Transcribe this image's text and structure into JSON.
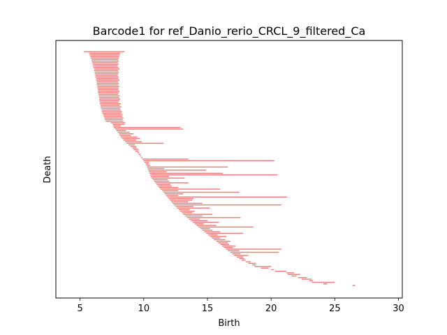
{
  "chart_data": {
    "type": "barcode",
    "title": "Barcode1 for ref_Danio_rerio_CRCL_9_filtered_Ca",
    "xlabel": "Birth",
    "ylabel": "Death",
    "xlim": [
      3.1,
      30.3
    ],
    "xticks": [
      "5",
      "10",
      "15",
      "20",
      "25",
      "30"
    ],
    "y_ticks_shown": false,
    "bar_color": "#f08080",
    "grid": false,
    "legend": "none",
    "intervals": [
      [
        5.3,
        8.5
      ],
      [
        5.7,
        8.15
      ],
      [
        5.75,
        8.12
      ],
      [
        5.8,
        8.08
      ],
      [
        5.85,
        8.05
      ],
      [
        5.9,
        8.0
      ],
      [
        5.9,
        8.05
      ],
      [
        5.95,
        7.98
      ],
      [
        6.0,
        8.02
      ],
      [
        6.0,
        7.95
      ],
      [
        6.05,
        8.0
      ],
      [
        6.1,
        8.1
      ],
      [
        6.1,
        7.98
      ],
      [
        6.15,
        8.05
      ],
      [
        6.15,
        8.0
      ],
      [
        6.2,
        7.95
      ],
      [
        6.2,
        8.05
      ],
      [
        6.25,
        8.0
      ],
      [
        6.25,
        8.1
      ],
      [
        6.3,
        7.98
      ],
      [
        6.3,
        8.05
      ],
      [
        6.3,
        8.0
      ],
      [
        6.35,
        8.08
      ],
      [
        6.35,
        8.02
      ],
      [
        6.4,
        8.0
      ],
      [
        6.4,
        8.1
      ],
      [
        6.4,
        8.05
      ],
      [
        6.45,
        7.98
      ],
      [
        6.45,
        8.12
      ],
      [
        6.5,
        8.05
      ],
      [
        6.5,
        8.15
      ],
      [
        6.5,
        8.08
      ],
      [
        6.55,
        8.0
      ],
      [
        6.55,
        8.2
      ],
      [
        6.6,
        8.1
      ],
      [
        6.6,
        8.25
      ],
      [
        6.65,
        8.15
      ],
      [
        6.7,
        8.2
      ],
      [
        6.7,
        8.3
      ],
      [
        6.75,
        8.25
      ],
      [
        6.8,
        8.35
      ],
      [
        6.85,
        8.3
      ],
      [
        6.9,
        8.4
      ],
      [
        6.95,
        8.35
      ],
      [
        7.0,
        8.4
      ],
      [
        7.4,
        8.55
      ],
      [
        7.55,
        8.5
      ],
      [
        7.6,
        8.2
      ],
      [
        7.65,
        12.9
      ],
      [
        7.75,
        13.1
      ],
      [
        7.85,
        8.6
      ],
      [
        7.95,
        8.9
      ],
      [
        8.05,
        9.2
      ],
      [
        8.1,
        9.0
      ],
      [
        8.2,
        9.5
      ],
      [
        8.3,
        9.7
      ],
      [
        8.4,
        9.4
      ],
      [
        8.55,
        9.85
      ],
      [
        8.65,
        11.55
      ],
      [
        8.8,
        9.3
      ],
      [
        8.95,
        9.4
      ],
      [
        9.1,
        9.45
      ],
      [
        9.2,
        9.6
      ],
      [
        9.35,
        9.6
      ],
      [
        9.5,
        9.65
      ],
      [
        9.6,
        9.75
      ],
      [
        9.7,
        9.8
      ],
      [
        9.8,
        9.9
      ],
      [
        9.9,
        13.5
      ],
      [
        9.95,
        20.25
      ],
      [
        10.05,
        10.4
      ],
      [
        10.15,
        10.4
      ],
      [
        10.2,
        10.5
      ],
      [
        10.25,
        16.6
      ],
      [
        10.3,
        11.6
      ],
      [
        10.35,
        14.9
      ],
      [
        10.4,
        11.8
      ],
      [
        10.45,
        16.2
      ],
      [
        10.5,
        20.5
      ],
      [
        10.55,
        12.0
      ],
      [
        10.6,
        13.2
      ],
      [
        10.7,
        11.9
      ],
      [
        10.8,
        12.0
      ],
      [
        10.9,
        13.5
      ],
      [
        11.0,
        12.1
      ],
      [
        11.1,
        12.2
      ],
      [
        11.2,
        12.7
      ],
      [
        11.3,
        16.0
      ],
      [
        11.45,
        12.7
      ],
      [
        11.55,
        17.5
      ],
      [
        11.65,
        13.1
      ],
      [
        11.75,
        12.7
      ],
      [
        11.85,
        21.25
      ],
      [
        11.95,
        13.9
      ],
      [
        12.05,
        13.8
      ],
      [
        12.15,
        13.5
      ],
      [
        12.25,
        14.6
      ],
      [
        12.35,
        20.8
      ],
      [
        12.5,
        13.9
      ],
      [
        12.6,
        15.2
      ],
      [
        12.75,
        13.6
      ],
      [
        12.85,
        14.0
      ],
      [
        13.0,
        13.8
      ],
      [
        13.1,
        15.4
      ],
      [
        13.25,
        14.6
      ],
      [
        13.4,
        17.6
      ],
      [
        13.55,
        14.4
      ],
      [
        13.7,
        15.0
      ],
      [
        13.85,
        15.9
      ],
      [
        14.0,
        14.7
      ],
      [
        14.15,
        15.7
      ],
      [
        14.3,
        18.6
      ],
      [
        14.45,
        15.2
      ],
      [
        14.6,
        15.4
      ],
      [
        14.75,
        16.0
      ],
      [
        14.9,
        17.8
      ],
      [
        15.05,
        15.8
      ],
      [
        15.2,
        16.5
      ],
      [
        15.35,
        16.0
      ],
      [
        15.5,
        16.4
      ],
      [
        15.7,
        16.8
      ],
      [
        15.85,
        16.6
      ],
      [
        16.0,
        16.7
      ],
      [
        16.15,
        17.2
      ],
      [
        16.3,
        17.0
      ],
      [
        16.45,
        20.8
      ],
      [
        16.6,
        17.5
      ],
      [
        16.8,
        20.6
      ],
      [
        16.95,
        17.6
      ],
      [
        17.1,
        18.2
      ],
      [
        17.3,
        17.8
      ],
      [
        17.5,
        17.9
      ],
      [
        17.7,
        18.0
      ],
      [
        18.0,
        18.4
      ],
      [
        18.2,
        18.8
      ],
      [
        18.5,
        18.8
      ],
      [
        18.7,
        20.0
      ],
      [
        19.2,
        19.8
      ],
      [
        20.0,
        20.2
      ],
      [
        20.3,
        21.2
      ],
      [
        21.2,
        21.8
      ],
      [
        21.3,
        22.3
      ],
      [
        21.6,
        22.0
      ],
      [
        22.1,
        22.8
      ],
      [
        22.4,
        23.2
      ],
      [
        23.0,
        23.3
      ],
      [
        23.2,
        25.0
      ],
      [
        24.1,
        24.4
      ],
      [
        26.4,
        26.6
      ]
    ]
  }
}
